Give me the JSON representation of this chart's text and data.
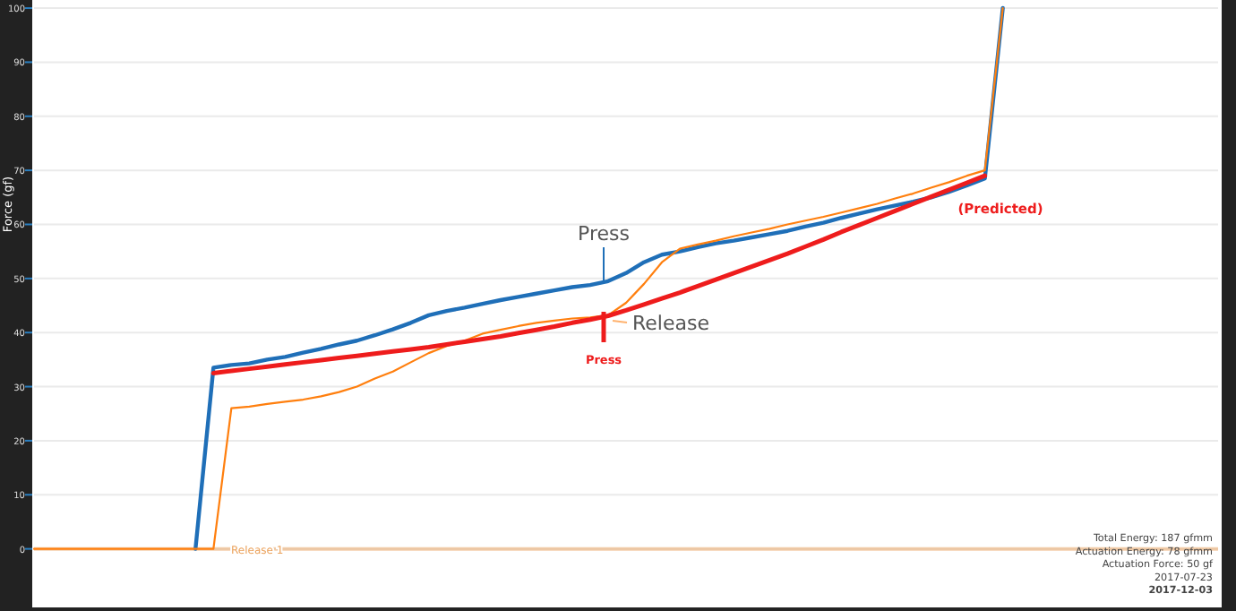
{
  "chart_data": {
    "type": "line",
    "ylabel": "Force (gf)",
    "categories": [
      null,
      null,
      null,
      null,
      null,
      null,
      null,
      null,
      null,
      null,
      null,
      null,
      null,
      null,
      null,
      null,
      null,
      null,
      null,
      null,
      null,
      null,
      null,
      null,
      null,
      null,
      null,
      null,
      null,
      null,
      null,
      null,
      null,
      null,
      null,
      null,
      null,
      null,
      null,
      null,
      null,
      null,
      null,
      null,
      null,
      null,
      null,
      null,
      null,
      null,
      null,
      null,
      null,
      null,
      null,
      null,
      null,
      null,
      null,
      null,
      null,
      null,
      null,
      null,
      null,
      null,
      null
    ],
    "series": [
      {
        "color": "#1f6fb8",
        "values": [
          null,
          null,
          null,
          null,
          null,
          null,
          null,
          null,
          null,
          0,
          33.5,
          34,
          34.3,
          35,
          35.5,
          36.3,
          37,
          37.8,
          38.5,
          39.5,
          40.6,
          41.8,
          43.2,
          44,
          44.6,
          45.3,
          46,
          46.6,
          47.2,
          47.8,
          48.4,
          48.8,
          49.5,
          51,
          53,
          54.4,
          55,
          55.8,
          56.5,
          57,
          57.6,
          58.2,
          58.8,
          59.6,
          60.3,
          61.2,
          62,
          62.8,
          63.5,
          64.2,
          65,
          66,
          67.2,
          68.5,
          100,
          null,
          null,
          null,
          null,
          null,
          null,
          null,
          null,
          null,
          null,
          null,
          null
        ]
      },
      {
        "color": "#ff7f0e",
        "values": [
          0,
          0,
          0,
          0,
          0,
          0,
          0,
          0,
          0,
          0,
          0,
          26,
          26.3,
          26.8,
          27.2,
          27.6,
          28.2,
          29,
          30,
          31.5,
          32.8,
          34.5,
          36.2,
          37.5,
          38.5,
          39.8,
          40.5,
          41.2,
          41.8,
          42.2,
          42.6,
          42.8,
          43.2,
          45.5,
          49,
          53,
          55.5,
          56.3,
          57,
          57.8,
          58.5,
          59.2,
          60,
          60.7,
          61.4,
          62.2,
          63,
          63.8,
          64.8,
          65.7,
          66.8,
          67.8,
          69,
          70,
          100,
          null,
          null,
          null,
          null,
          null,
          null,
          null,
          null,
          null,
          null,
          null,
          null
        ]
      },
      {
        "name": "(Predicted)",
        "color": "#ee1c1c",
        "values": [
          null,
          null,
          null,
          null,
          null,
          null,
          null,
          null,
          null,
          null,
          32.5,
          32.9,
          33.3,
          33.7,
          34.1,
          34.5,
          34.9,
          35.3,
          35.7,
          36.1,
          36.5,
          36.9,
          37.3,
          37.8,
          38.3,
          38.8,
          39.3,
          39.9,
          40.5,
          41.1,
          41.8,
          42.4,
          43.1,
          44.1,
          45.2,
          46.3,
          47.4,
          48.6,
          49.8,
          51,
          52.2,
          53.4,
          54.6,
          55.9,
          57.2,
          58.6,
          59.9,
          61.2,
          62.5,
          63.8,
          65.1,
          66.4,
          67.7,
          69,
          null,
          null,
          null,
          null,
          null,
          null,
          null,
          null,
          null,
          null,
          null,
          null,
          null
        ]
      }
    ],
    "ylim": [
      -10.5,
      101.5
    ],
    "yticks": [
      0,
      10,
      20,
      30,
      40,
      50,
      60,
      70,
      80,
      90,
      100
    ],
    "grid": "y",
    "marker": "none",
    "line_style": "solid",
    "ref_lines": [
      {
        "axis": "y",
        "value": 0,
        "label": "Release 1",
        "color": "#eba25c"
      }
    ],
    "annotations": [
      "Press",
      "Release",
      "Press",
      "Total Energy: 187 gfmm",
      "Actuation Energy: 78 gfmm",
      "Actuation Force: 50 gf",
      "2017-07-23",
      "2017-12-03"
    ]
  }
}
